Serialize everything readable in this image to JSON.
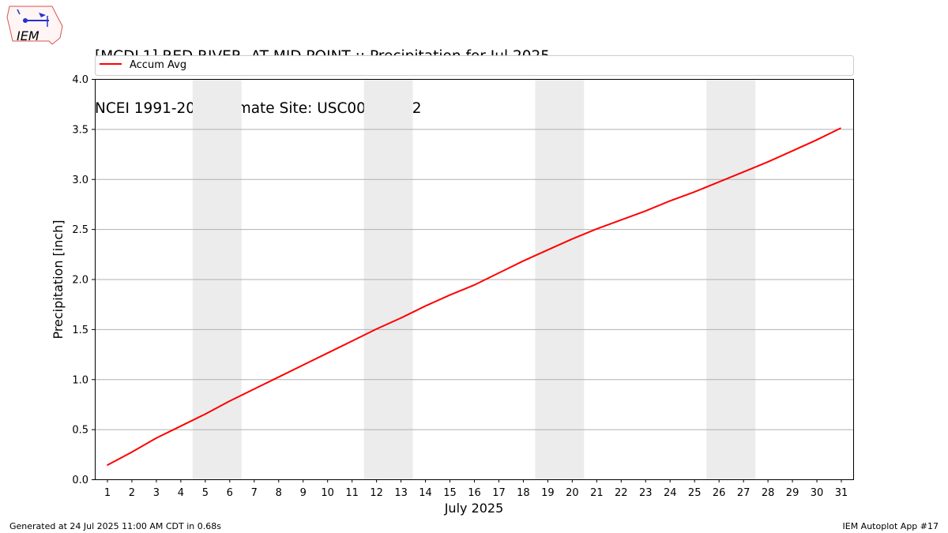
{
  "title_line1": "[MCDL1] RED RIVER  AT MID POINT :: Precipitation for Jul 2025",
  "title_line2": "NCEI 1991-2020 Climate Site: USC00166582",
  "logo_text": "IEM",
  "footer_left": "Generated at 24 Jul 2025 11:00 AM CDT in 0.68s",
  "footer_right": "IEM Autoplot App #17",
  "colors": {
    "line": "#ff0000",
    "weekend_band": "#ececec",
    "grid": "#b0b0b0",
    "logo": "#d9534f",
    "logo_blue": "#2233cc"
  },
  "chart_data": {
    "type": "line",
    "xlabel": "July 2025",
    "ylabel": "Precipitation [inch]",
    "x": [
      1,
      2,
      3,
      4,
      5,
      6,
      7,
      8,
      9,
      10,
      11,
      12,
      13,
      14,
      15,
      16,
      17,
      18,
      19,
      20,
      21,
      22,
      23,
      24,
      25,
      26,
      27,
      28,
      29,
      30,
      31
    ],
    "series": [
      {
        "name": "Accum Avg",
        "values": [
          0.14,
          0.27,
          0.41,
          0.53,
          0.65,
          0.78,
          0.9,
          1.02,
          1.14,
          1.26,
          1.38,
          1.5,
          1.61,
          1.73,
          1.84,
          1.94,
          2.06,
          2.18,
          2.29,
          2.4,
          2.5,
          2.59,
          2.68,
          2.78,
          2.87,
          2.97,
          3.07,
          3.17,
          3.28,
          3.39,
          3.51
        ]
      }
    ],
    "xlim": [
      0.5,
      31.5
    ],
    "ylim": [
      0,
      4.0
    ],
    "yticks": [
      0.0,
      0.5,
      1.0,
      1.5,
      2.0,
      2.5,
      3.0,
      3.5,
      4.0
    ],
    "shaded_day_ranges": [
      [
        5,
        6
      ],
      [
        12,
        13
      ],
      [
        19,
        20
      ],
      [
        26,
        27
      ]
    ],
    "grid": "horizontal",
    "legend_position": "top"
  }
}
